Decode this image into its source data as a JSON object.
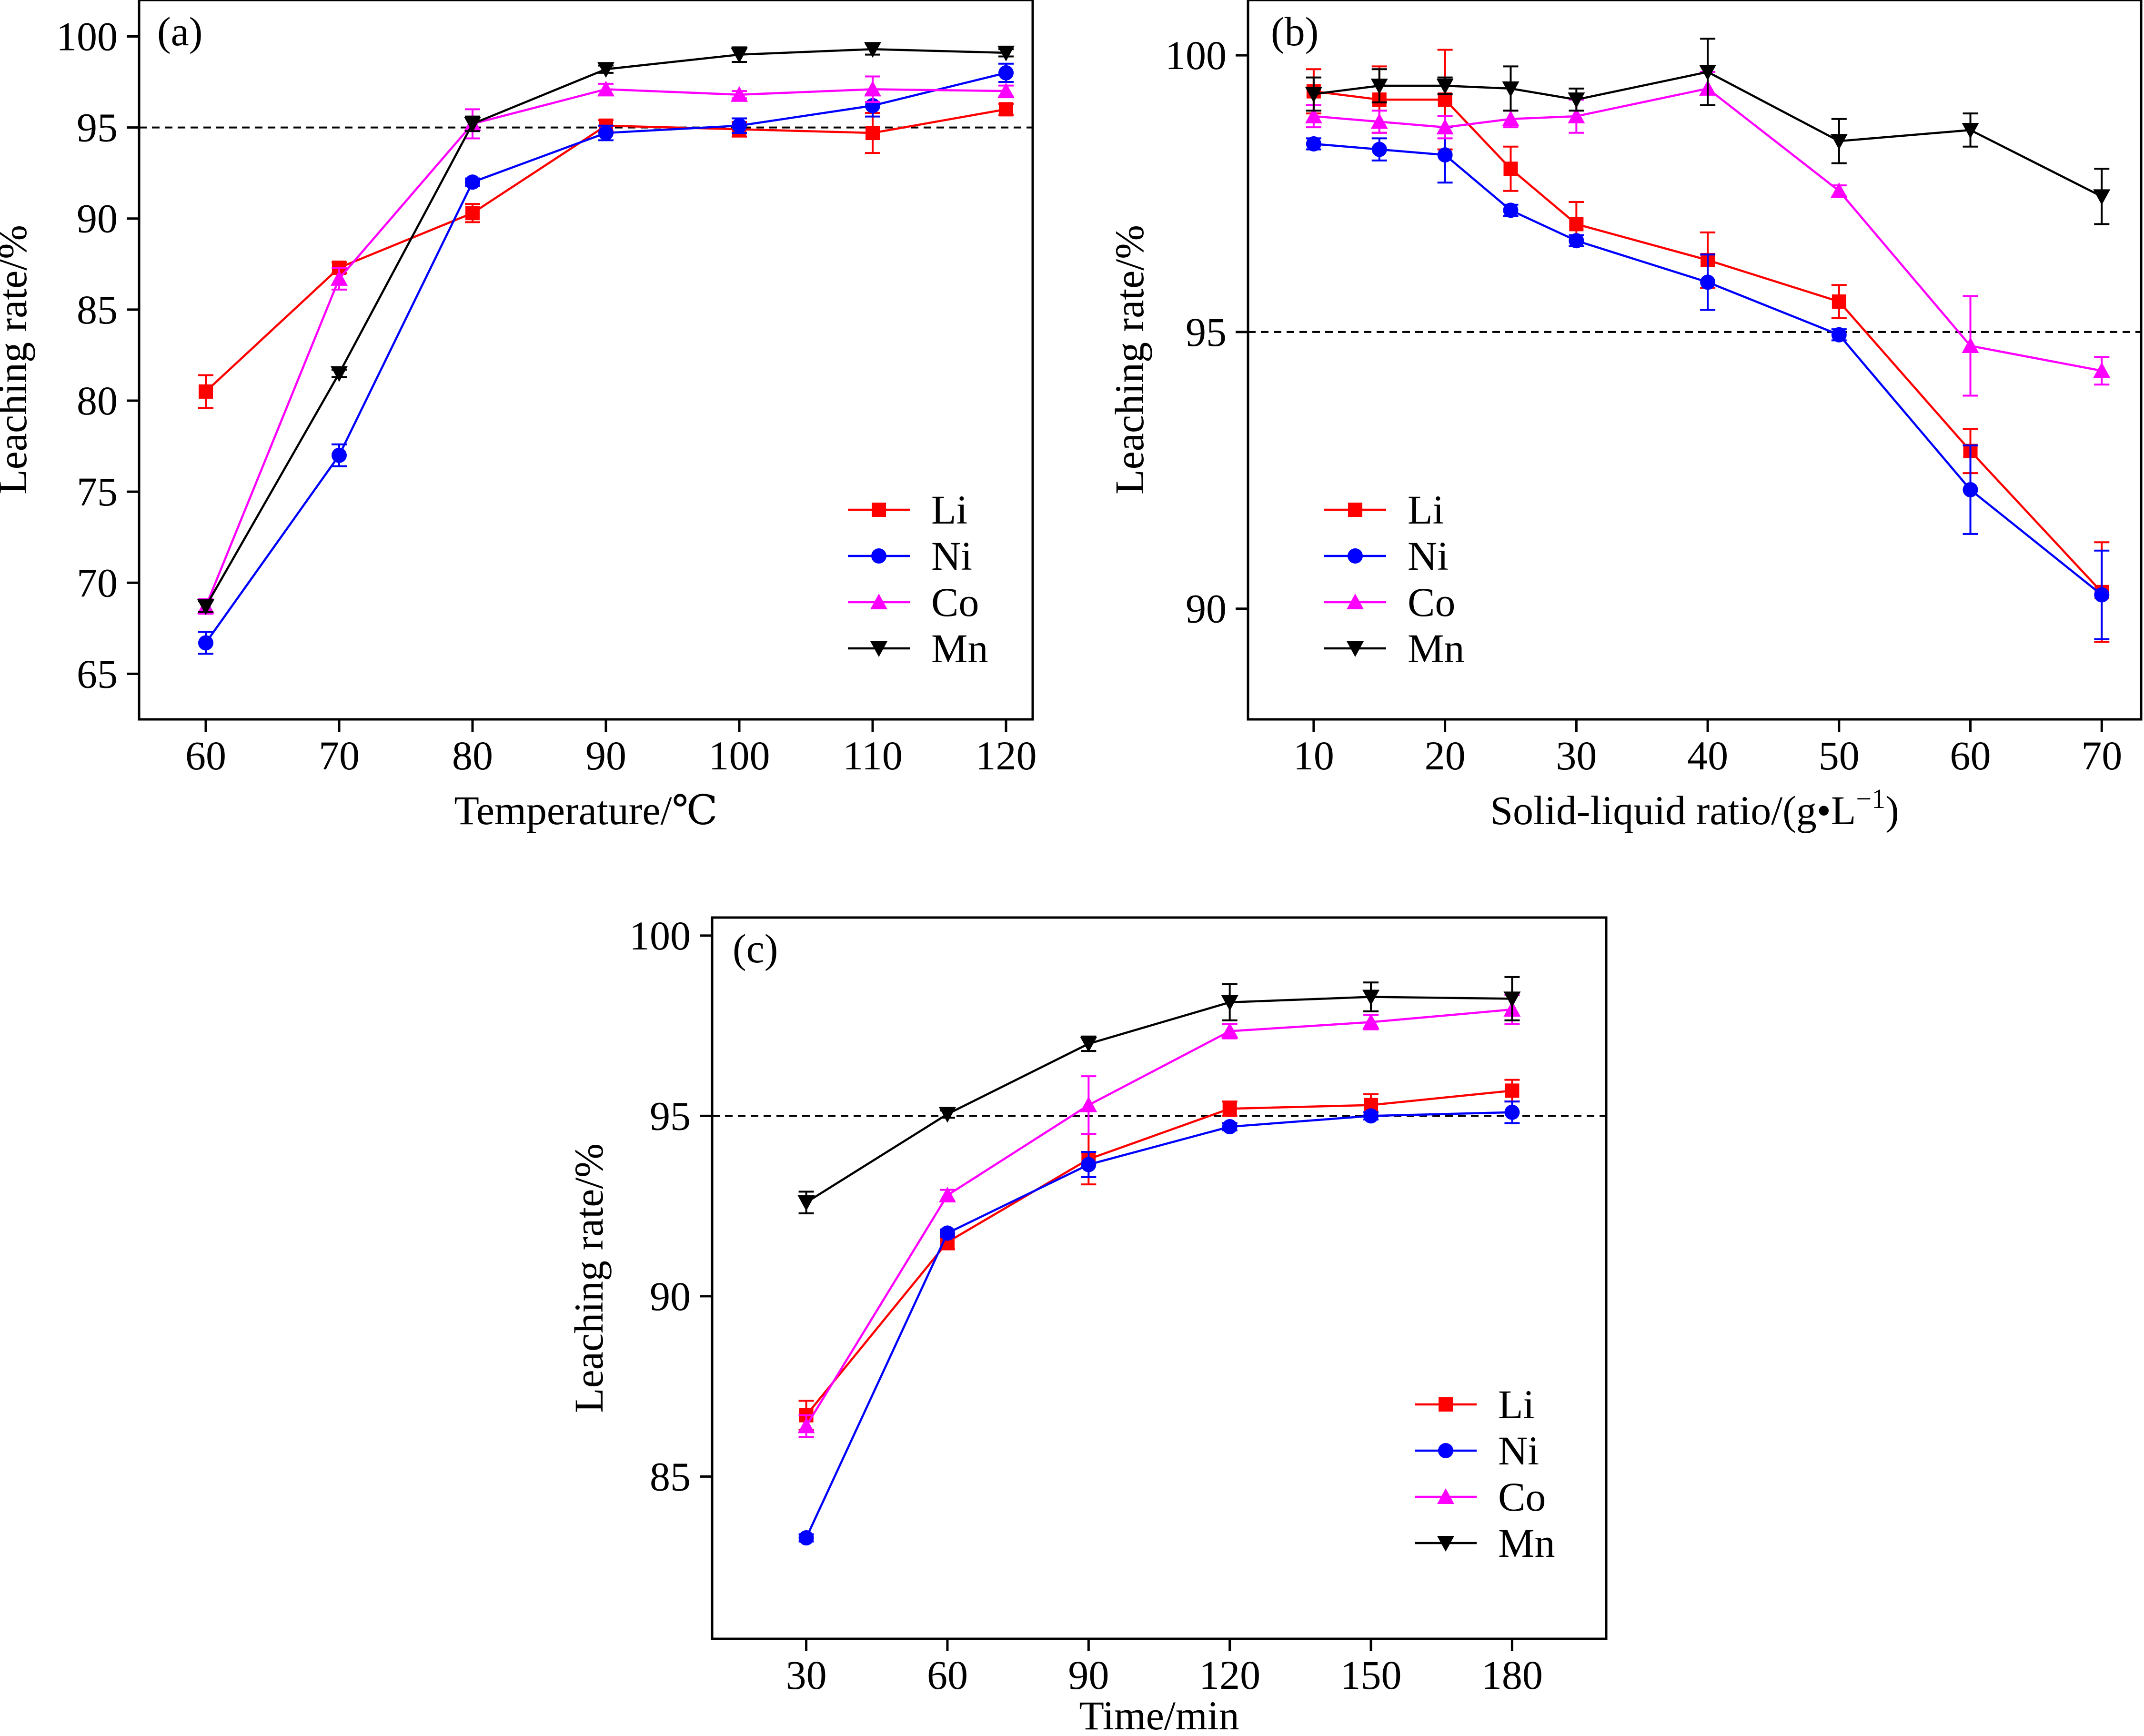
{
  "chart_data": [
    {
      "panel_label": "(a)",
      "type": "line",
      "xlabel": "Temperature/℃",
      "ylabel": "Leaching rate/%",
      "x": [
        60,
        70,
        80,
        90,
        100,
        110,
        120
      ],
      "x_tick_labels": [
        "60",
        "70",
        "80",
        "90",
        "100",
        "110",
        "120"
      ],
      "xlim": [
        55,
        122
      ],
      "y_ticks": [
        65,
        70,
        75,
        80,
        85,
        90,
        95,
        100
      ],
      "y_tick_labels": [
        "65",
        "70",
        "75",
        "80",
        "85",
        "90",
        "95",
        "100"
      ],
      "ylim": [
        62.5,
        102
      ],
      "reference_line": 95,
      "series": [
        {
          "name": "Li",
          "color": "#ff0000",
          "marker": "square",
          "values": [
            80.5,
            87.3,
            90.3,
            95.1,
            94.9,
            94.7,
            96.0
          ],
          "errors": [
            0.9,
            0.3,
            0.5,
            0.3,
            0.4,
            1.1,
            0.3
          ]
        },
        {
          "name": "Ni",
          "color": "#0000ff",
          "marker": "circle",
          "values": [
            66.7,
            77.0,
            92.0,
            94.7,
            95.1,
            96.2,
            98.0
          ],
          "errors": [
            0.6,
            0.6,
            0.2,
            0.4,
            0.4,
            0.6,
            0.5
          ]
        },
        {
          "name": "Co",
          "color": "#ff00ff",
          "marker": "triangle-up",
          "values": [
            68.7,
            86.7,
            95.2,
            97.1,
            96.8,
            97.1,
            97.0
          ],
          "errors": [
            0.4,
            0.6,
            0.8,
            0.3,
            0.2,
            0.7,
            0.3
          ]
        },
        {
          "name": "Mn",
          "color": "#000000",
          "marker": "triangle-down",
          "values": [
            68.7,
            81.5,
            95.2,
            98.2,
            99.0,
            99.3,
            99.1
          ],
          "errors": [
            0.3,
            0.2,
            0.4,
            0.2,
            0.4,
            0.3,
            0.2
          ]
        }
      ]
    },
    {
      "panel_label": "(b)",
      "type": "line",
      "xlabel": "Solid-liquid ratio/(g•L",
      "xlabel_sup": "−1",
      "xlabel_end": ")",
      "ylabel": "Leaching rate/%",
      "x": [
        10,
        15,
        20,
        25,
        30,
        40,
        50,
        60,
        70
      ],
      "x_ticks": [
        10,
        20,
        30,
        40,
        50,
        60,
        70
      ],
      "x_tick_labels": [
        "10",
        "20",
        "30",
        "40",
        "50",
        "60",
        "70"
      ],
      "xlim": [
        5,
        73
      ],
      "y_ticks": [
        90,
        95,
        100
      ],
      "y_tick_labels": [
        "90",
        "95",
        "100"
      ],
      "ylim": [
        88,
        101
      ],
      "reference_line": 95,
      "series": [
        {
          "name": "Li",
          "color": "#ff0000",
          "marker": "square",
          "values": [
            99.35,
            99.2,
            99.2,
            97.95,
            96.95,
            96.3,
            95.55,
            92.85,
            90.3
          ],
          "errors": [
            0.4,
            0.6,
            0.9,
            0.4,
            0.4,
            0.5,
            0.3,
            0.4,
            0.9
          ]
        },
        {
          "name": "Ni",
          "color": "#0000ff",
          "marker": "circle",
          "values": [
            98.4,
            98.3,
            98.2,
            97.2,
            96.65,
            95.9,
            94.95,
            92.15,
            90.25
          ],
          "errors": [
            0.1,
            0.2,
            0.5,
            0.1,
            0.1,
            0.5,
            0.1,
            0.8,
            0.8
          ]
        },
        {
          "name": "Co",
          "color": "#ff00ff",
          "marker": "triangle-up",
          "values": [
            98.9,
            98.8,
            98.7,
            98.85,
            98.9,
            99.4,
            97.55,
            94.75,
            94.3
          ],
          "errors": [
            0.2,
            0.2,
            0.2,
            0.15,
            0.3,
            0.3,
            0.1,
            0.9,
            0.25
          ]
        },
        {
          "name": "Mn",
          "color": "#000000",
          "marker": "triangle-down",
          "values": [
            99.3,
            99.45,
            99.45,
            99.4,
            99.2,
            99.7,
            98.45,
            98.65,
            97.45
          ],
          "errors": [
            0.3,
            0.3,
            0.15,
            0.4,
            0.2,
            0.6,
            0.4,
            0.3,
            0.5
          ]
        }
      ]
    },
    {
      "panel_label": "(c)",
      "type": "line",
      "xlabel": "Time/min",
      "ylabel": "Leaching rate/%",
      "x": [
        30,
        60,
        90,
        120,
        150,
        180
      ],
      "x_tick_labels": [
        "30",
        "60",
        "90",
        "120",
        "150",
        "180"
      ],
      "xlim": [
        10,
        200
      ],
      "y_ticks": [
        85,
        90,
        95,
        100
      ],
      "y_tick_labels": [
        "85",
        "90",
        "95",
        "100"
      ],
      "ylim": [
        80.5,
        100.5
      ],
      "reference_line": 95,
      "series": [
        {
          "name": "Li",
          "color": "#ff0000",
          "marker": "square",
          "values": [
            86.7,
            91.5,
            93.8,
            95.2,
            95.3,
            95.7
          ],
          "errors": [
            0.4,
            0.2,
            0.7,
            0.2,
            0.3,
            0.3
          ]
        },
        {
          "name": "Ni",
          "color": "#0000ff",
          "marker": "circle",
          "values": [
            83.3,
            91.75,
            93.65,
            94.7,
            95.0,
            95.1
          ],
          "errors": [
            0.1,
            0.1,
            0.35,
            0.1,
            0.1,
            0.3
          ]
        },
        {
          "name": "Co",
          "color": "#ff00ff",
          "marker": "triangle-up",
          "values": [
            86.4,
            92.8,
            95.3,
            97.35,
            97.6,
            97.95
          ],
          "errors": [
            0.3,
            0.15,
            0.8,
            0.2,
            0.2,
            0.4
          ]
        },
        {
          "name": "Mn",
          "color": "#000000",
          "marker": "triangle-down",
          "values": [
            92.6,
            95.05,
            97.0,
            98.15,
            98.3,
            98.25
          ],
          "errors": [
            0.3,
            0.1,
            0.2,
            0.5,
            0.4,
            0.6
          ]
        }
      ]
    }
  ]
}
